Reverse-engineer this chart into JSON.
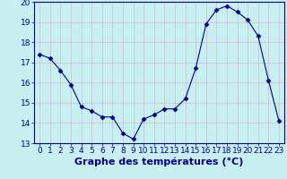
{
  "x": [
    0,
    1,
    2,
    3,
    4,
    5,
    6,
    7,
    8,
    9,
    10,
    11,
    12,
    13,
    14,
    15,
    16,
    17,
    18,
    19,
    20,
    21,
    22,
    23
  ],
  "y": [
    17.4,
    17.2,
    16.6,
    15.9,
    14.8,
    14.6,
    14.3,
    14.3,
    13.5,
    13.2,
    14.2,
    14.4,
    14.7,
    14.7,
    15.2,
    16.7,
    18.9,
    19.6,
    19.8,
    19.5,
    19.1,
    18.3,
    16.1,
    14.1
  ],
  "line_color": "#00008B",
  "marker": "D",
  "marker_size": 2.5,
  "bg_color": "#c8f0f0",
  "grid_color": "#d0b8d0",
  "xlabel": "Graphe des températures (°C)",
  "xlabel_color": "#00008B",
  "xlabel_fontsize": 8,
  "tick_color": "#00008B",
  "tick_fontsize": 6.5,
  "ylim": [
    13,
    20
  ],
  "xlim": [
    -0.5,
    23.5
  ],
  "yticks": [
    13,
    14,
    15,
    16,
    17,
    18,
    19,
    20
  ],
  "xticks": [
    0,
    1,
    2,
    3,
    4,
    5,
    6,
    7,
    8,
    9,
    10,
    11,
    12,
    13,
    14,
    15,
    16,
    17,
    18,
    19,
    20,
    21,
    22,
    23
  ]
}
